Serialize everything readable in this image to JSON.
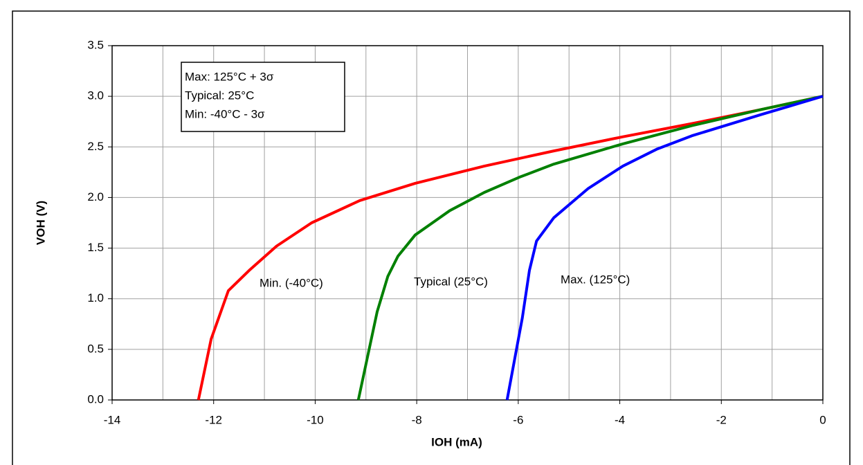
{
  "chart_data": {
    "type": "line",
    "xlabel": "IOH (mA)",
    "ylabel": "VOH (V)",
    "xlim": [
      -14,
      0
    ],
    "ylim": [
      0,
      3.5
    ],
    "xticks": [
      -14,
      -12,
      -10,
      -8,
      -6,
      -4,
      -2,
      0
    ],
    "x_minor_ticks": [
      -13,
      -11,
      -9,
      -7,
      -5,
      -3,
      -1
    ],
    "yticks": [
      {
        "value": 0,
        "label": "0.0"
      },
      {
        "value": 0.5,
        "label": "0.5"
      },
      {
        "value": 1,
        "label": "1.0"
      },
      {
        "value": 1.5,
        "label": "1.5"
      },
      {
        "value": 2,
        "label": "2.0"
      },
      {
        "value": 2.5,
        "label": "2.5"
      },
      {
        "value": 3,
        "label": "3.0"
      },
      {
        "value": 3.5,
        "label": "3.5"
      }
    ],
    "grid": true,
    "legend_box": [
      "Max: 125°C + 3σ",
      "Typical: 25°C",
      "Min: -40°C - 3σ"
    ],
    "series": [
      {
        "name": "Min. (-40°C)",
        "color": "#ff0000",
        "x": [
          -12.3,
          -12.05,
          -11.71,
          -11.3,
          -10.76,
          -10.07,
          -9.12,
          -8.03,
          -6.67,
          -5.3,
          -3.94,
          -2.58,
          -1.21,
          0
        ],
        "values": [
          0,
          0.6,
          1.08,
          1.28,
          1.52,
          1.75,
          1.97,
          2.14,
          2.31,
          2.46,
          2.6,
          2.73,
          2.87,
          3.0
        ]
      },
      {
        "name": "Typical (25°C)",
        "color": "#008000",
        "x": [
          -9.15,
          -8.98,
          -8.78,
          -8.57,
          -8.37,
          -8.03,
          -7.35,
          -6.67,
          -5.98,
          -5.3,
          -3.94,
          -2.58,
          -1.21,
          0
        ],
        "values": [
          0,
          0.4,
          0.87,
          1.22,
          1.42,
          1.63,
          1.87,
          2.05,
          2.2,
          2.33,
          2.53,
          2.71,
          2.87,
          3.0
        ]
      },
      {
        "name": "Max. (125°C)",
        "color": "#0000ff",
        "x": [
          -6.22,
          -6.05,
          -5.92,
          -5.78,
          -5.64,
          -5.3,
          -4.62,
          -3.94,
          -3.26,
          -2.58,
          -1.21,
          0
        ],
        "values": [
          0,
          0.46,
          0.81,
          1.28,
          1.57,
          1.8,
          2.09,
          2.31,
          2.48,
          2.61,
          2.82,
          3.0
        ]
      }
    ]
  }
}
